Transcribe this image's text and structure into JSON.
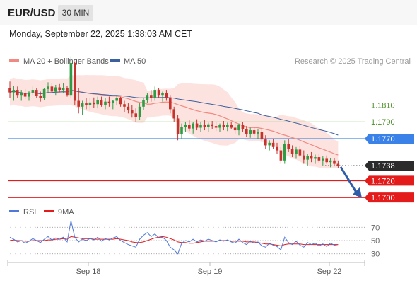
{
  "header": {
    "symbol": "EUR/USD",
    "timeframe": "30 MIN",
    "datetime": "Monday, September 22, 2025 1:38:03 AM CET"
  },
  "legend": {
    "ma20": "MA 20 + Bollinger Bands",
    "ma50": "MA 50",
    "rsi": "RSI",
    "rsi_ma": "9MA"
  },
  "credit": "Research © 2025 Trading Central",
  "colors": {
    "bull": "#2e9c44",
    "bear": "#c6332d",
    "ma20": "#f08a80",
    "bands": "#fde0dc",
    "ma50": "#3c5f9e",
    "green_level": "#9ccf7a",
    "blue_level": "#4a8fe0",
    "red_level": "#e41b1b",
    "rsi": "#5078d8",
    "rsi_ma": "#e41b1b",
    "arrow": "#2f5ea8"
  },
  "chart_data": {
    "type": "candlestick",
    "x_ticks": [
      "Sep 18",
      "Sep 19",
      "Sep 22"
    ],
    "price_range": [
      1.1695,
      1.1855
    ],
    "levels": [
      {
        "value": 1.181,
        "label": "1.1810",
        "kind": "resistance"
      },
      {
        "value": 1.179,
        "label": "1.1790",
        "kind": "resistance"
      },
      {
        "value": 1.177,
        "label": "1.1770",
        "kind": "pivot"
      },
      {
        "value": 1.1738,
        "label": "1.1738",
        "kind": "last"
      },
      {
        "value": 1.172,
        "label": "1.1720",
        "kind": "support"
      },
      {
        "value": 1.17,
        "label": "1.1700",
        "kind": "support"
      }
    ],
    "candles": [
      [
        1.183,
        1.1838,
        1.1818,
        1.1825
      ],
      [
        1.1825,
        1.1833,
        1.1815,
        1.1828
      ],
      [
        1.1828,
        1.1832,
        1.1818,
        1.1822
      ],
      [
        1.1822,
        1.1828,
        1.1815,
        1.1824
      ],
      [
        1.1824,
        1.1829,
        1.1817,
        1.182
      ],
      [
        1.182,
        1.1827,
        1.1815,
        1.1825
      ],
      [
        1.1825,
        1.1832,
        1.1822,
        1.1828
      ],
      [
        1.1828,
        1.183,
        1.1818,
        1.1821
      ],
      [
        1.1821,
        1.1826,
        1.1814,
        1.1818
      ],
      [
        1.1818,
        1.183,
        1.1816,
        1.1829
      ],
      [
        1.1829,
        1.1837,
        1.1825,
        1.1832
      ],
      [
        1.1832,
        1.1836,
        1.1824,
        1.1826
      ],
      [
        1.1826,
        1.1834,
        1.1822,
        1.1831
      ],
      [
        1.1831,
        1.1835,
        1.1825,
        1.1828
      ],
      [
        1.1828,
        1.1836,
        1.1824,
        1.183
      ],
      [
        1.183,
        1.1833,
        1.182,
        1.1822
      ],
      [
        1.1822,
        1.1868,
        1.1818,
        1.186
      ],
      [
        1.186,
        1.1862,
        1.181,
        1.1815
      ],
      [
        1.1815,
        1.183,
        1.18,
        1.1808
      ],
      [
        1.1808,
        1.1815,
        1.1798,
        1.1812
      ],
      [
        1.1812,
        1.1818,
        1.1805,
        1.181
      ],
      [
        1.181,
        1.1818,
        1.1804,
        1.1813
      ],
      [
        1.1813,
        1.1819,
        1.1807,
        1.1811
      ],
      [
        1.1811,
        1.182,
        1.1806,
        1.1816
      ],
      [
        1.1816,
        1.182,
        1.1808,
        1.181
      ],
      [
        1.181,
        1.1818,
        1.1805,
        1.1814
      ],
      [
        1.1814,
        1.182,
        1.1808,
        1.1812
      ],
      [
        1.1812,
        1.1816,
        1.1805,
        1.1815
      ],
      [
        1.1815,
        1.1822,
        1.181,
        1.1818
      ],
      [
        1.1818,
        1.182,
        1.1808,
        1.1811
      ],
      [
        1.1811,
        1.1815,
        1.1802,
        1.1808
      ],
      [
        1.1808,
        1.1812,
        1.18,
        1.1804
      ],
      [
        1.1804,
        1.181,
        1.1795,
        1.18
      ],
      [
        1.18,
        1.1806,
        1.179,
        1.1796
      ],
      [
        1.1796,
        1.1812,
        1.1792,
        1.1808
      ],
      [
        1.1808,
        1.1818,
        1.1804,
        1.1816
      ],
      [
        1.1816,
        1.1824,
        1.1812,
        1.1822
      ],
      [
        1.1822,
        1.1828,
        1.1814,
        1.1818
      ],
      [
        1.1818,
        1.1832,
        1.1815,
        1.1828
      ],
      [
        1.1828,
        1.183,
        1.1818,
        1.1822
      ],
      [
        1.1822,
        1.1826,
        1.1814,
        1.1824
      ],
      [
        1.1824,
        1.1828,
        1.1815,
        1.1819
      ],
      [
        1.1819,
        1.1822,
        1.18,
        1.1805
      ],
      [
        1.1805,
        1.1808,
        1.179,
        1.1794
      ],
      [
        1.1794,
        1.1798,
        1.1768,
        1.1775
      ],
      [
        1.1775,
        1.1788,
        1.177,
        1.1784
      ],
      [
        1.1784,
        1.179,
        1.1778,
        1.1786
      ],
      [
        1.1786,
        1.1792,
        1.1779,
        1.1782
      ],
      [
        1.1782,
        1.179,
        1.1776,
        1.1788
      ],
      [
        1.1788,
        1.1793,
        1.178,
        1.1783
      ],
      [
        1.1783,
        1.179,
        1.1778,
        1.1786
      ],
      [
        1.1786,
        1.1792,
        1.178,
        1.1784
      ],
      [
        1.1784,
        1.1789,
        1.1778,
        1.1787
      ],
      [
        1.1787,
        1.1791,
        1.1781,
        1.1785
      ],
      [
        1.1785,
        1.179,
        1.1779,
        1.1783
      ],
      [
        1.1783,
        1.1788,
        1.1778,
        1.1786
      ],
      [
        1.1786,
        1.1791,
        1.178,
        1.1784
      ],
      [
        1.1784,
        1.1789,
        1.1779,
        1.1786
      ],
      [
        1.1786,
        1.179,
        1.1781,
        1.1783
      ],
      [
        1.1783,
        1.1788,
        1.1776,
        1.178
      ],
      [
        1.178,
        1.1788,
        1.1774,
        1.1786
      ],
      [
        1.1786,
        1.179,
        1.1778,
        1.1781
      ],
      [
        1.1781,
        1.1785,
        1.1772,
        1.1775
      ],
      [
        1.1775,
        1.1783,
        1.1771,
        1.178
      ],
      [
        1.178,
        1.1784,
        1.1773,
        1.1776
      ],
      [
        1.1776,
        1.1781,
        1.177,
        1.1778
      ],
      [
        1.1778,
        1.1782,
        1.1766,
        1.1769
      ],
      [
        1.1769,
        1.1774,
        1.1758,
        1.1762
      ],
      [
        1.1762,
        1.1768,
        1.1756,
        1.1765
      ],
      [
        1.1765,
        1.177,
        1.1758,
        1.176
      ],
      [
        1.176,
        1.1765,
        1.1752,
        1.1756
      ],
      [
        1.1756,
        1.176,
        1.174,
        1.1744
      ],
      [
        1.1744,
        1.1768,
        1.174,
        1.1764
      ],
      [
        1.1764,
        1.177,
        1.1754,
        1.1758
      ],
      [
        1.1758,
        1.1762,
        1.1748,
        1.1752
      ],
      [
        1.1752,
        1.176,
        1.1746,
        1.1757
      ],
      [
        1.1757,
        1.1761,
        1.1748,
        1.175
      ],
      [
        1.175,
        1.1756,
        1.174,
        1.1745
      ],
      [
        1.1745,
        1.1752,
        1.1738,
        1.1749
      ],
      [
        1.1749,
        1.1754,
        1.1742,
        1.1746
      ],
      [
        1.1746,
        1.1751,
        1.174,
        1.1748
      ],
      [
        1.1748,
        1.1752,
        1.1741,
        1.1744
      ],
      [
        1.1744,
        1.1749,
        1.1738,
        1.1746
      ],
      [
        1.1746,
        1.175,
        1.174,
        1.1742
      ],
      [
        1.1742,
        1.1747,
        1.1736,
        1.1744
      ],
      [
        1.1744,
        1.1747,
        1.1737,
        1.174
      ],
      [
        1.174,
        1.1744,
        1.1735,
        1.1738
      ]
    ],
    "rsi_range": [
      20,
      80
    ],
    "rsi_ticks": [
      70,
      50,
      30
    ],
    "rsi": [
      55,
      52,
      48,
      50,
      46,
      49,
      53,
      50,
      47,
      52,
      56,
      51,
      54,
      52,
      55,
      48,
      80,
      55,
      48,
      52,
      50,
      53,
      51,
      55,
      49,
      53,
      51,
      54,
      56,
      50,
      47,
      44,
      42,
      40,
      52,
      58,
      62,
      56,
      60,
      54,
      55,
      50,
      40,
      36,
      30,
      46,
      50,
      48,
      52,
      48,
      51,
      49,
      52,
      50,
      48,
      51,
      49,
      51,
      48,
      46,
      52,
      47,
      44,
      49,
      46,
      48,
      42,
      40,
      46,
      43,
      41,
      36,
      55,
      47,
      44,
      49,
      43,
      40,
      47,
      44,
      46,
      42,
      45,
      41,
      46,
      43,
      42
    ],
    "rsi_ma": [
      50,
      51,
      50,
      50,
      49,
      49,
      50,
      50,
      50,
      50,
      51,
      51,
      52,
      52,
      53,
      52,
      56,
      55,
      54,
      53,
      53,
      53,
      52,
      52,
      52,
      52,
      52,
      52,
      53,
      52,
      51,
      50,
      48,
      47,
      47,
      48,
      50,
      52,
      54,
      55,
      56,
      55,
      53,
      51,
      48,
      47,
      47,
      46,
      46,
      47,
      48,
      49,
      49,
      49,
      49,
      50,
      50,
      50,
      49,
      49,
      49,
      49,
      48,
      48,
      48,
      47,
      46,
      45,
      45,
      44,
      43,
      42,
      44,
      45,
      45,
      45,
      45,
      44,
      44,
      44,
      44,
      44,
      44,
      44,
      44,
      44,
      44
    ]
  }
}
